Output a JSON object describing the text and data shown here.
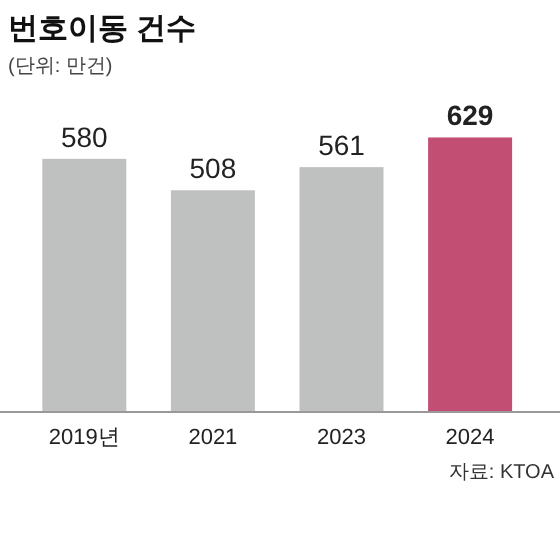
{
  "chart_data": {
    "type": "bar",
    "title": "번호이동 건수",
    "subtitle": "(단위: 만건)",
    "categories": [
      "2019년",
      "2021",
      "2023",
      "2024"
    ],
    "values": [
      580,
      508,
      561,
      629
    ],
    "colors": [
      "#bfc1c0",
      "#bfc1c0",
      "#bfc1c0",
      "#c24e74"
    ],
    "data_labels": true,
    "annotations": [
      "자료: KTOA"
    ]
  }
}
